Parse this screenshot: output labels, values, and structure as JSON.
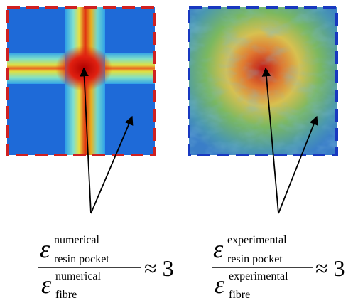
{
  "panels": [
    {
      "numerator": {
        "symbol": "ε",
        "sup": "numerical",
        "sub": "resin pocket"
      },
      "denominator": {
        "symbol": "ε",
        "sup": "numerical",
        "sub": "fibre"
      },
      "relation": "≈ 3"
    },
    {
      "numerator": {
        "symbol": "ε",
        "sup": "experimental",
        "sub": "resin pocket"
      },
      "denominator": {
        "symbol": "ε",
        "sup": "experimental",
        "sub": "fibre"
      },
      "relation": "≈ 3"
    }
  ]
}
